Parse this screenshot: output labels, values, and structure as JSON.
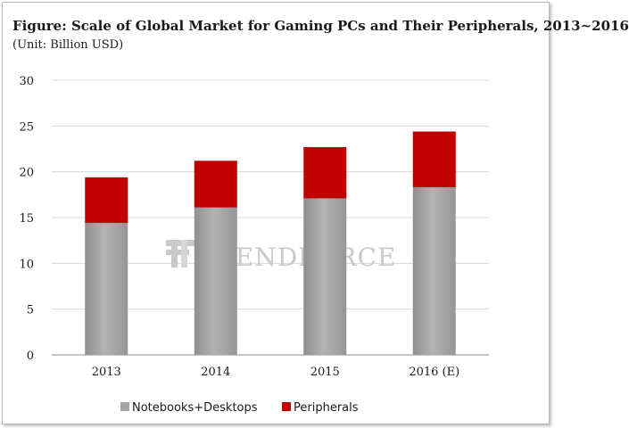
{
  "title": "Figure: Scale of Global Market for Gaming PCs and Their Peripherals, 2013~2016",
  "subtitle": "(Unit: Billion USD)",
  "watermark": "TRENDFORCE",
  "chart_data": {
    "type": "bar",
    "stacked": true,
    "categories": [
      "2013",
      "2014",
      "2015",
      "2016 (E)"
    ],
    "series": [
      {
        "name": "Notebooks+Desktops",
        "values": [
          14.4,
          16.1,
          17.1,
          18.3
        ],
        "color": "#a6a6a6"
      },
      {
        "name": "Peripherals",
        "values": [
          5.0,
          5.1,
          5.6,
          6.1
        ],
        "color": "#c00000"
      }
    ],
    "title": "Figure: Scale of Global Market for Gaming PCs and Their Peripherals, 2013~2016",
    "ylabel": "",
    "xlabel": "",
    "ylim": [
      0,
      30
    ],
    "yticks": [
      0,
      5,
      10,
      15,
      20,
      25,
      30
    ],
    "grid": true,
    "legend": "bottom"
  }
}
